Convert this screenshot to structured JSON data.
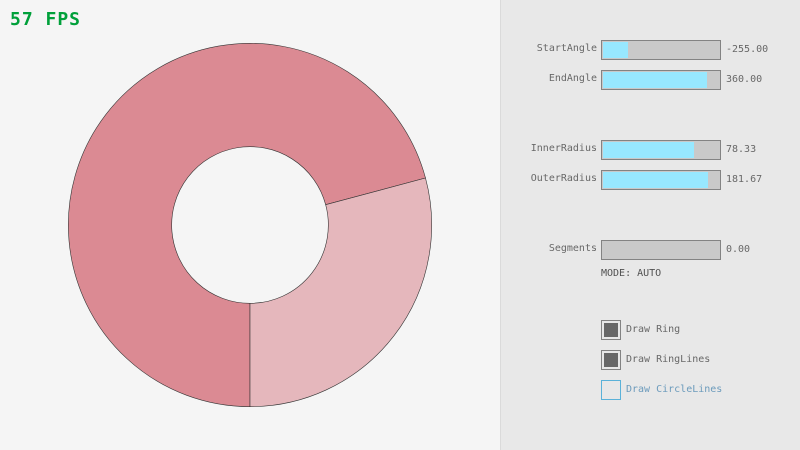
{
  "fps": "57 FPS",
  "ring": {
    "start_angle": -255,
    "end_angle": 360,
    "inner_radius": 78.33,
    "outer_radius": 181.67,
    "colors": {
      "ring_main": "#db8a93",
      "ring_light": "#e5b7bc",
      "outline": "#333333"
    }
  },
  "controls": {
    "sliders": [
      {
        "label": "StartAngle",
        "value": "-255.00",
        "fraction": 0.217
      },
      {
        "label": "EndAngle",
        "value": "360.00",
        "fraction": 0.9
      },
      {
        "label": "InnerRadius",
        "value": "78.33",
        "fraction": 0.783
      },
      {
        "label": "OuterRadius",
        "value": "181.67",
        "fraction": 0.908
      },
      {
        "label": "Segments",
        "value": "0.00",
        "fraction": 0
      }
    ],
    "mode": "MODE: AUTO",
    "checkboxes": [
      {
        "label": "Draw Ring",
        "checked": true
      },
      {
        "label": "Draw RingLines",
        "checked": true
      },
      {
        "label": "Draw CircleLines",
        "checked": false
      }
    ],
    "accent": "#97e8ff"
  }
}
